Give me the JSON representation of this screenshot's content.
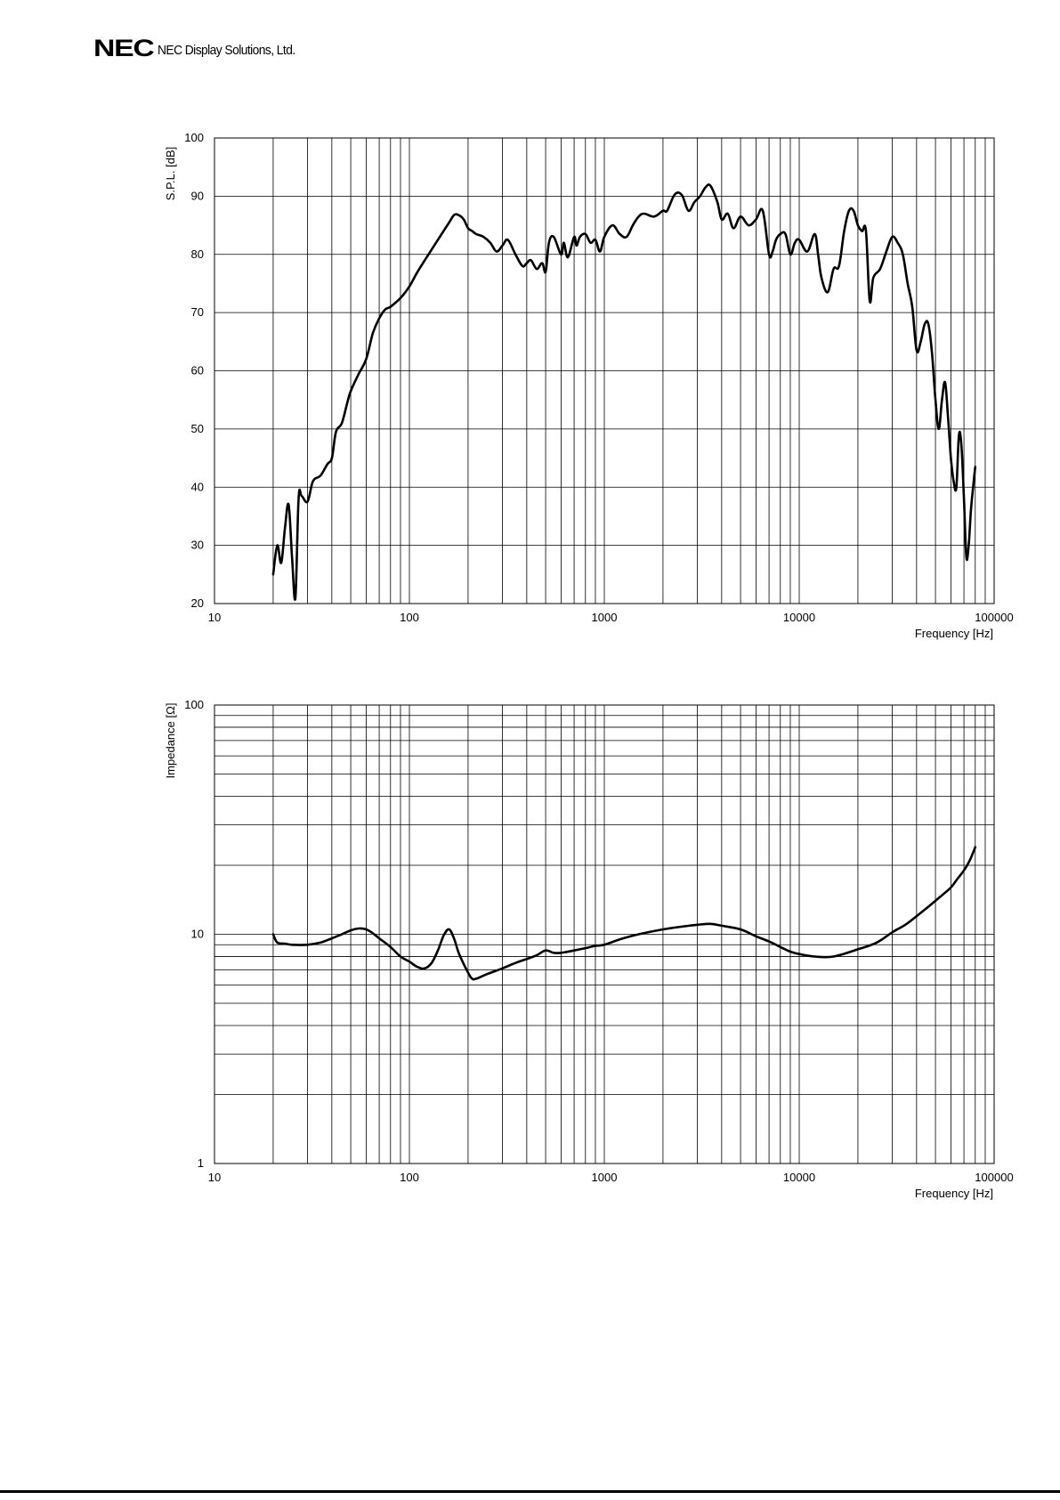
{
  "header": {
    "logo_text": "NEC",
    "company_text": "NEC Display Solutions, Ltd."
  },
  "colors": {
    "curve": "#000000",
    "grid": "#000000",
    "background": "#ffffff"
  },
  "chart_data": [
    {
      "type": "line",
      "title": "",
      "xlabel": "Frequency [Hz]",
      "ylabel": "S.P.L. [dB]",
      "x_scale": "log",
      "y_scale": "linear",
      "xlim": [
        10,
        100000
      ],
      "ylim": [
        20,
        100
      ],
      "x_ticks": [
        "10",
        "100",
        "1000",
        "10000",
        "100000"
      ],
      "y_ticks": [
        "20",
        "30",
        "40",
        "50",
        "60",
        "70",
        "80",
        "90",
        "100"
      ],
      "grid": true,
      "series": [
        {
          "x": [
            20,
            21,
            22,
            23,
            24,
            25,
            26,
            27,
            28,
            30,
            32,
            35,
            38,
            40,
            42,
            45,
            48,
            50,
            55,
            60,
            65,
            70,
            75,
            80,
            90,
            100,
            110,
            120,
            140,
            160,
            170,
            180,
            190,
            200,
            210,
            220,
            240,
            260,
            280,
            300,
            320,
            350,
            380,
            400,
            420,
            450,
            480,
            500,
            520,
            550,
            600,
            620,
            650,
            700,
            720,
            750,
            800,
            850,
            900,
            950,
            1000,
            1100,
            1200,
            1300,
            1400,
            1500,
            1600,
            1800,
            2000,
            2100,
            2300,
            2500,
            2700,
            2900,
            3100,
            3300,
            3500,
            3800,
            4000,
            4300,
            4600,
            5000,
            5500,
            6000,
            6500,
            7000,
            7300,
            7600,
            8000,
            8500,
            9000,
            9500,
            10000,
            11000,
            12000,
            12500,
            13000,
            14000,
            15000,
            16000,
            17000,
            18000,
            19000,
            20000,
            21000,
            22000,
            23000,
            24000,
            26000,
            28000,
            30000,
            32000,
            34000,
            36000,
            38000,
            40000,
            42000,
            44000,
            46000,
            48000,
            50000,
            52000,
            54000,
            56000,
            58000,
            60000,
            62000,
            64000,
            66000,
            68000,
            70000,
            72000,
            74000,
            76000,
            78000,
            80000
          ],
          "y": [
            25,
            30,
            27,
            33,
            37,
            28,
            21,
            38,
            38.5,
            37.5,
            41,
            42,
            44,
            45,
            49.5,
            51,
            54.5,
            56.5,
            59.5,
            62,
            66.5,
            69,
            70.5,
            71,
            72.5,
            74.5,
            77,
            79,
            82.5,
            85.5,
            86.8,
            86.7,
            86,
            84.5,
            84,
            83.5,
            83,
            82,
            80.5,
            81.5,
            82.5,
            80,
            78,
            78.5,
            79,
            77.5,
            78.5,
            77,
            82,
            83,
            80,
            82,
            79.5,
            83,
            81.5,
            83,
            83.5,
            82,
            82.5,
            80.5,
            83,
            85,
            83.5,
            83,
            85,
            86.5,
            87,
            86.5,
            87.5,
            87.5,
            90.3,
            90.2,
            87.5,
            89,
            90,
            91.5,
            91.8,
            89,
            86,
            87,
            84.5,
            86.5,
            85,
            86,
            87.5,
            80,
            80.5,
            82.5,
            83.5,
            83.5,
            80,
            82,
            82.5,
            80.5,
            83.5,
            80,
            76,
            73.5,
            77.5,
            78,
            84,
            87.5,
            87.5,
            85,
            84,
            84,
            72,
            76,
            77.5,
            80.5,
            83,
            82,
            80,
            75,
            71,
            63.5,
            65,
            68,
            68,
            63,
            55,
            50,
            55,
            58,
            52,
            45,
            41,
            40,
            49,
            47,
            38,
            28,
            30,
            36,
            40,
            43.5
          ]
        }
      ]
    },
    {
      "type": "line",
      "title": "",
      "xlabel": "Frequency [Hz]",
      "ylabel": "Impedance [Ω]",
      "x_scale": "log",
      "y_scale": "log",
      "xlim": [
        10,
        100000
      ],
      "ylim": [
        1,
        100
      ],
      "x_ticks": [
        "10",
        "100",
        "1000",
        "10000",
        "100000"
      ],
      "y_ticks": [
        "1",
        "10",
        "100"
      ],
      "grid": true,
      "series": [
        {
          "x": [
            20,
            21,
            23,
            25,
            30,
            35,
            40,
            45,
            50,
            55,
            60,
            65,
            70,
            80,
            90,
            100,
            110,
            120,
            130,
            140,
            150,
            160,
            170,
            180,
            200,
            210,
            220,
            250,
            300,
            350,
            400,
            450,
            500,
            550,
            600,
            700,
            800,
            900,
            1000,
            1200,
            1500,
            2000,
            2500,
            3000,
            3500,
            4000,
            5000,
            6000,
            7000,
            8000,
            9000,
            10000,
            12000,
            15000,
            20000,
            25000,
            30000,
            35000,
            40000,
            45000,
            50000,
            55000,
            60000,
            65000,
            70000,
            75000,
            80000
          ],
          "y": [
            10,
            9.2,
            9.1,
            9.0,
            9.0,
            9.2,
            9.6,
            10,
            10.4,
            10.6,
            10.5,
            10.1,
            9.6,
            8.8,
            8.0,
            7.6,
            7.2,
            7.1,
            7.5,
            8.5,
            9.9,
            10.5,
            9.5,
            8.2,
            6.8,
            6.4,
            6.4,
            6.7,
            7.1,
            7.5,
            7.8,
            8.1,
            8.5,
            8.3,
            8.3,
            8.5,
            8.7,
            8.9,
            9.0,
            9.5,
            10.0,
            10.5,
            10.8,
            11.0,
            11.1,
            10.9,
            10.5,
            9.8,
            9.3,
            8.8,
            8.4,
            8.2,
            8.0,
            8.0,
            8.6,
            9.2,
            10.2,
            11.0,
            12.0,
            13.0,
            14.0,
            15.0,
            16.0,
            17.5,
            19.0,
            21.0,
            24.0
          ]
        }
      ]
    }
  ]
}
